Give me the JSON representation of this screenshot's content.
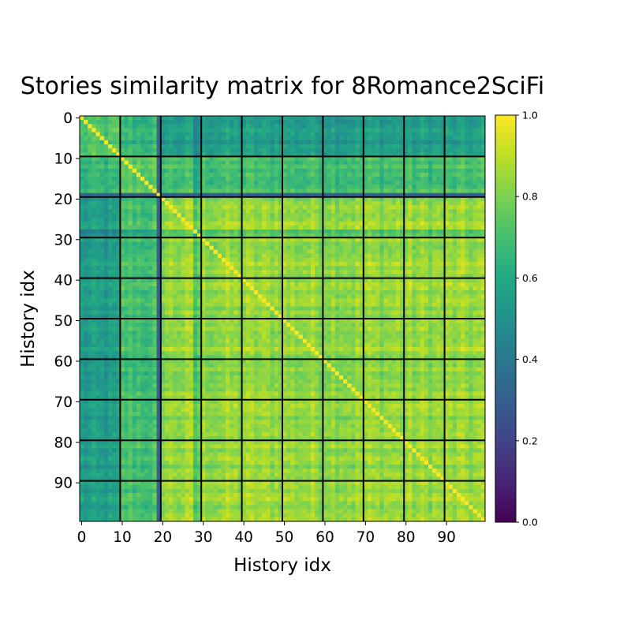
{
  "chart_data": {
    "type": "heatmap",
    "title": "Stories similarity matrix for 8Romance2SciFi",
    "xlabel": "History idx",
    "ylabel": "History idx",
    "size": 100,
    "colormap": "viridis",
    "clim": [
      0.0,
      1.0
    ],
    "block_boundaries": [
      9.5,
      19.5,
      29.5,
      39.5,
      49.5,
      59.5,
      69.5,
      79.5,
      89.5
    ],
    "block_genres": [
      "romance",
      "romance",
      "scifi",
      "scifi",
      "scifi",
      "scifi",
      "scifi",
      "scifi",
      "scifi",
      "scifi"
    ],
    "diagonal_value": 1.0,
    "approx_block_means": {
      "rows_0_9": {
        "cols_0_9": 0.7,
        "cols_10_19": 0.65,
        "cols_20_99": 0.55
      },
      "rows_10_19": {
        "cols_0_9": 0.65,
        "cols_10_19": 0.75,
        "cols_20_99": 0.68
      },
      "row_19": {
        "cols_0_9": 0.35,
        "cols_10_99": 0.32
      },
      "rows_20_99": {
        "cols_0_9": 0.52,
        "cols_10_19": 0.7,
        "cols_20_99": 0.84
      }
    },
    "xticks": [
      0,
      10,
      20,
      30,
      40,
      50,
      60,
      70,
      80,
      90
    ],
    "yticks": [
      0,
      10,
      20,
      30,
      40,
      50,
      60,
      70,
      80,
      90
    ],
    "colorbar_ticks": [
      "0.0",
      "0.2",
      "0.4",
      "0.6",
      "0.8",
      "1.0"
    ]
  }
}
